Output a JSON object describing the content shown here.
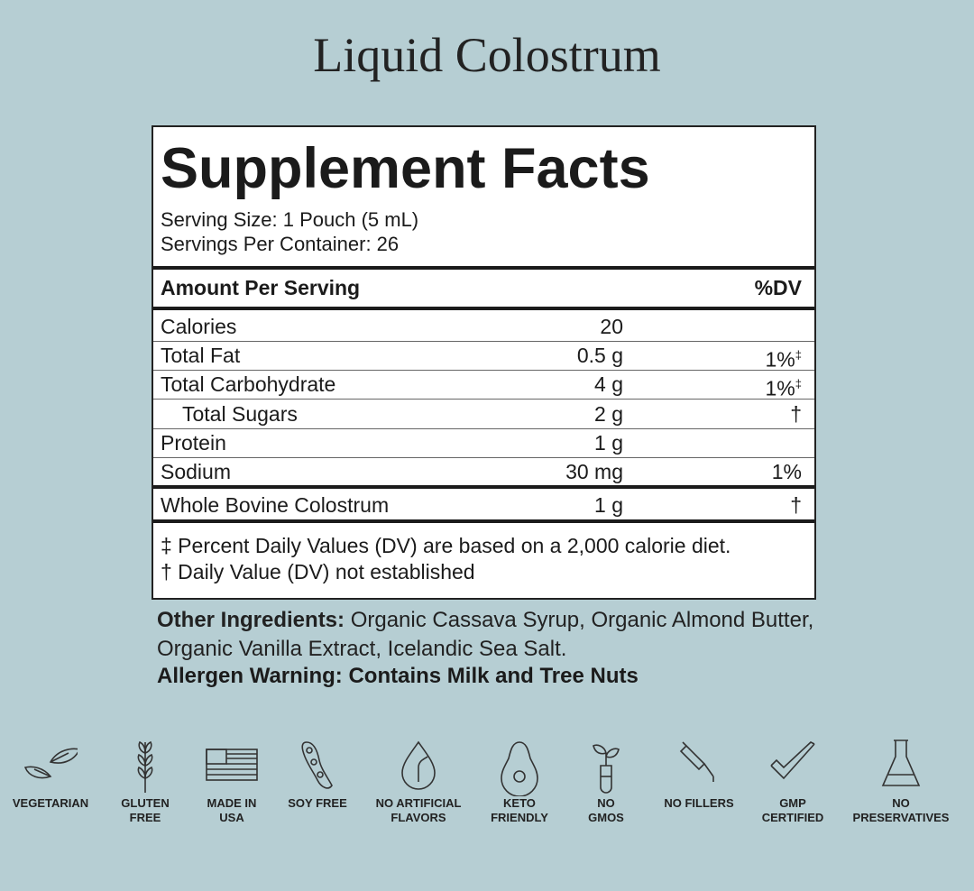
{
  "title": "Liquid Colostrum",
  "facts": {
    "heading": "Supplement Facts",
    "serving_size": "Serving Size: 1 Pouch (5 mL)",
    "servings_per_container": "Servings Per Container: 26",
    "header": {
      "amount": "Amount Per Serving",
      "dv": "%DV"
    },
    "rows": [
      {
        "name": "Calories",
        "amount": "20"
      },
      {
        "name": "Total Fat",
        "amount": "0.5 g",
        "dv": "1%",
        "note": "‡"
      },
      {
        "name": "Total Carbohydrate",
        "amount": "4 g",
        "dv": "1%",
        "note": "‡"
      },
      {
        "name": "Total Sugars",
        "amount": "2 g",
        "dv": "†"
      },
      {
        "name": "Protein",
        "amount": "1 g"
      },
      {
        "name": "Sodium",
        "amount": "30 mg",
        "dv": "1%"
      },
      {
        "name": "Whole Bovine Colostrum",
        "amount": "1 g",
        "dv": "†"
      }
    ],
    "footnotes": [
      "‡ Percent Daily Values (DV) are based on a 2,000 calorie diet.",
      "† Daily Value (DV) not established"
    ]
  },
  "other_ingredients": {
    "label": "Other Ingredients:",
    "text": "Organic Cassava Syrup, Organic Almond Butter, Organic Vanilla Extract, Icelandic Sea Salt."
  },
  "allergen_warning": "Allergen Warning: Contains Milk and Tree Nuts",
  "badges": [
    [
      "VEGETARIAN"
    ],
    [
      "GLUTEN",
      "FREE"
    ],
    [
      "MADE IN",
      "USA"
    ],
    [
      "SOY FREE"
    ],
    [
      "NO ARTIFICIAL",
      "FLAVORS"
    ],
    [
      "KETO",
      "FRIENDLY"
    ],
    [
      "NO",
      "GMOS"
    ],
    [
      "NO FILLERS"
    ],
    [
      "GMP",
      "CERTIFIED"
    ],
    [
      "NO",
      "PRESERVATIVES"
    ]
  ]
}
